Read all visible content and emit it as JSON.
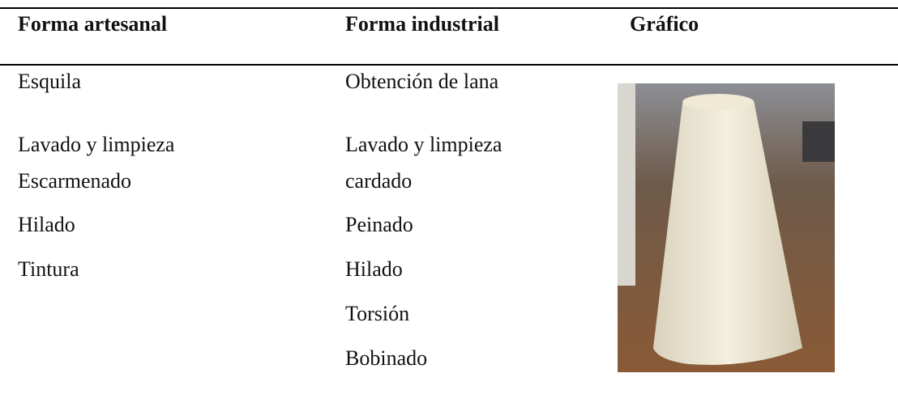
{
  "table": {
    "headers": [
      "Forma artesanal",
      "Forma industrial",
      "Gráfico"
    ],
    "columns": [
      [
        "Esquila",
        "Lavado y limpieza",
        "Escarmenado",
        "Hilado",
        "Tintura"
      ],
      [
        "Obtención de lana",
        "Lavado y limpieza",
        "cardado",
        "Peinado",
        "Hilado",
        "Torsión",
        "Bobinado"
      ]
    ]
  }
}
